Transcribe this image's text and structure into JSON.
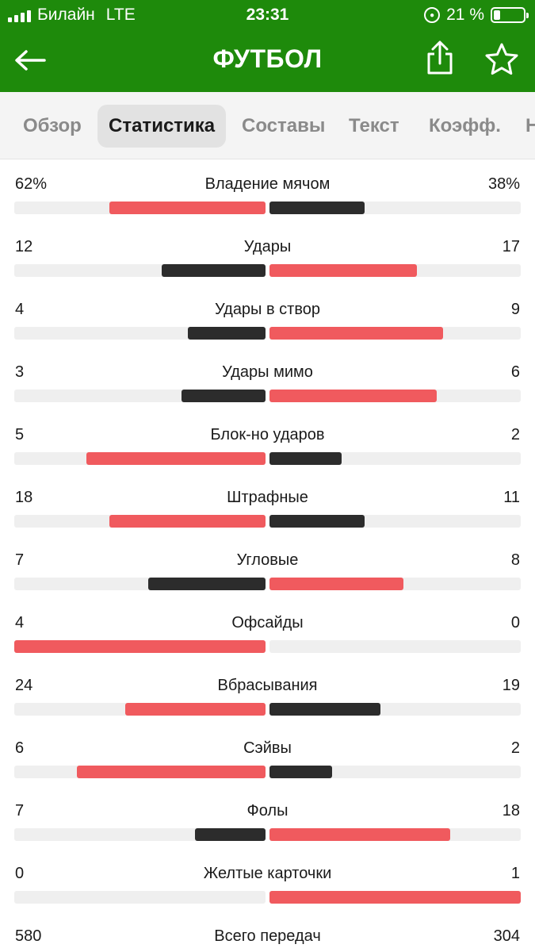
{
  "status_bar": {
    "carrier": "Билайн",
    "network": "LTE",
    "time": "23:31",
    "battery": "21 %",
    "battery_level": 0.21
  },
  "nav": {
    "title": "ФУТБОЛ",
    "back_icon": "arrow-left-icon",
    "share_icon": "share-icon",
    "favorite_icon": "star-icon"
  },
  "tabs": [
    {
      "label": "Обзор",
      "active": false
    },
    {
      "label": "Статистика",
      "active": true
    },
    {
      "label": "Составы",
      "active": false
    },
    {
      "label": "Текст",
      "active": false
    },
    {
      "label": "Коэфф.",
      "active": false
    },
    {
      "label": "Н",
      "active": false
    }
  ],
  "colors": {
    "header_green": "#1e8a0b",
    "leader_red": "#f05a5e",
    "trailer_dark": "#2c2c2c",
    "track": "#efefef"
  },
  "stats": [
    {
      "label": "Владение мячом",
      "left": "62%",
      "right": "38%",
      "left_value": 62,
      "right_value": 38
    },
    {
      "label": "Удары",
      "left": "12",
      "right": "17",
      "left_value": 12,
      "right_value": 17
    },
    {
      "label": "Удары в створ",
      "left": "4",
      "right": "9",
      "left_value": 4,
      "right_value": 9
    },
    {
      "label": "Удары мимо",
      "left": "3",
      "right": "6",
      "left_value": 3,
      "right_value": 6
    },
    {
      "label": "Блок-но ударов",
      "left": "5",
      "right": "2",
      "left_value": 5,
      "right_value": 2
    },
    {
      "label": "Штрафные",
      "left": "18",
      "right": "11",
      "left_value": 18,
      "right_value": 11
    },
    {
      "label": "Угловые",
      "left": "7",
      "right": "8",
      "left_value": 7,
      "right_value": 8
    },
    {
      "label": "Офсайды",
      "left": "4",
      "right": "0",
      "left_value": 4,
      "right_value": 0
    },
    {
      "label": "Вбрасывания",
      "left": "24",
      "right": "19",
      "left_value": 24,
      "right_value": 19
    },
    {
      "label": "Сэйвы",
      "left": "6",
      "right": "2",
      "left_value": 6,
      "right_value": 2
    },
    {
      "label": "Фолы",
      "left": "7",
      "right": "18",
      "left_value": 7,
      "right_value": 18
    },
    {
      "label": "Желтые карточки",
      "left": "0",
      "right": "1",
      "left_value": 0,
      "right_value": 1
    },
    {
      "label": "Всего передач",
      "left": "580",
      "right": "304",
      "left_value": 580,
      "right_value": 304
    }
  ]
}
